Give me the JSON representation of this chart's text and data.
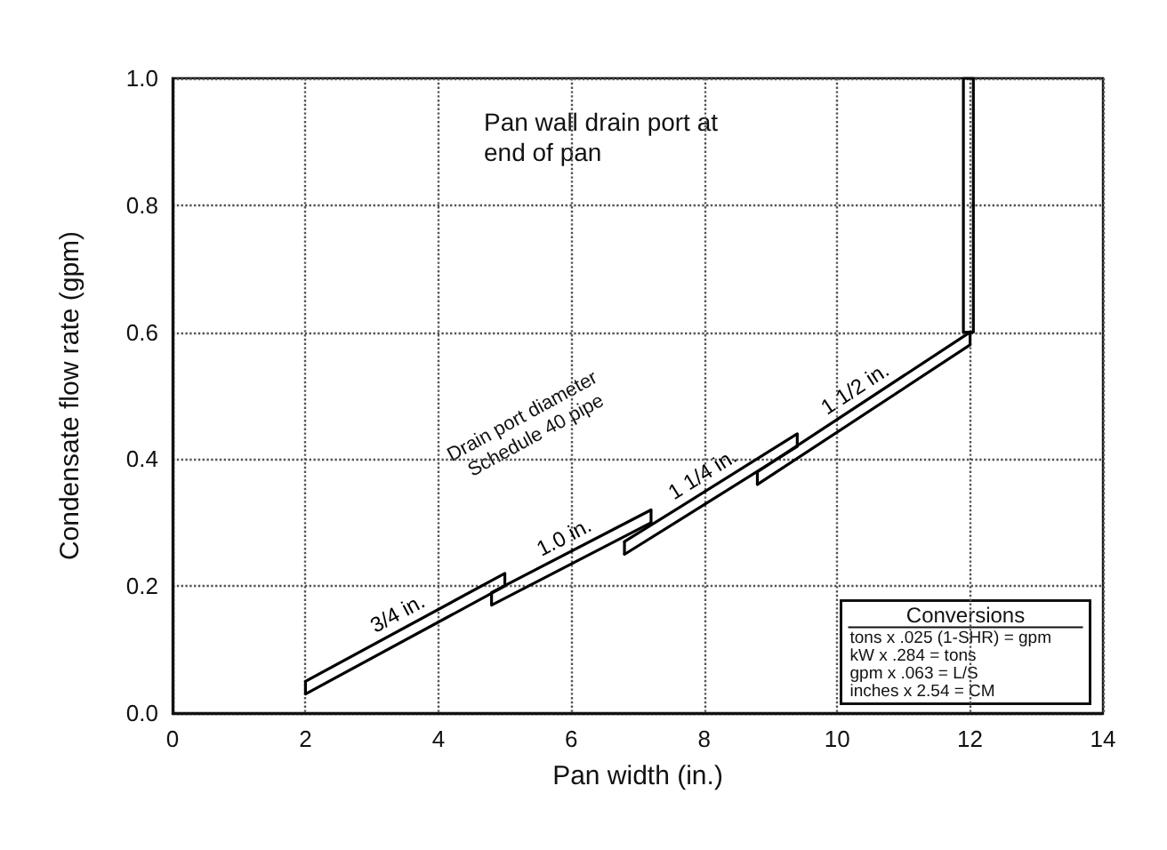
{
  "chart_data": {
    "type": "line",
    "title": "Pan wall drain port at end of pan",
    "xlabel": "Pan width (in.)",
    "ylabel": "Condensate flow rate (gpm)",
    "annotations": [
      "Drain port diameter Schedule 40 pipe",
      "Conversions",
      "tons x .025 (1-SHR) = gpm",
      "kW x .284 = tons",
      "gpm x .063 = L/S",
      "inches x 2.54 = CM"
    ],
    "series": [
      {
        "name": "3/4 in.",
        "color": "#000000",
        "x": [
          2,
          5
        ],
        "values": [
          0.05,
          0.22
        ],
        "errors": [
          [
            0.03,
            0.05
          ],
          [
            0.2,
            0.22
          ]
        ]
      },
      {
        "color": "#000000",
        "x": [
          2,
          5
        ],
        "values": [
          0.03,
          0.2
        ]
      },
      {
        "name": "1.0 in.",
        "color": "#000000",
        "x": [
          4.8,
          7.2
        ],
        "values": [
          0.19,
          0.32
        ],
        "errors": [
          [
            0.17,
            0.19
          ],
          [
            0.3,
            0.32
          ]
        ]
      },
      {
        "color": "#000000",
        "x": [
          4.8,
          7.2
        ],
        "values": [
          0.17,
          0.3
        ]
      },
      {
        "name": "1 1/4 in.",
        "color": "#000000",
        "x": [
          6.8,
          9.4
        ],
        "values": [
          0.27,
          0.44
        ],
        "errors": [
          [
            0.25,
            0.27
          ],
          [
            0.42,
            0.44
          ]
        ]
      },
      {
        "color": "#000000",
        "x": [
          6.8,
          9.4
        ],
        "values": [
          0.25,
          0.42
        ]
      },
      {
        "name": "1 1/2 in.",
        "color": "#000000",
        "x": [
          8.8,
          12
        ],
        "values": [
          0.38,
          0.6
        ],
        "errors": [
          [
            0.36,
            0.38
          ],
          [
            0.58,
            0.6
          ]
        ]
      },
      {
        "color": "#000000",
        "x": [
          8.8,
          12
        ],
        "values": [
          0.36,
          0.58
        ]
      },
      {
        "color": "#000000",
        "x": [
          11.9,
          12.05
        ],
        "values": [
          1.0,
          1.0
        ],
        "errors": [
          [
            0.6,
            1.0
          ],
          [
            0.6,
            1.0
          ]
        ]
      },
      {
        "color": "#000000",
        "x": [
          11.9,
          12.05
        ],
        "values": [
          0.6,
          0.6
        ]
      }
    ],
    "xlim": [
      0,
      14
    ],
    "xticks": [
      0,
      2,
      4,
      6,
      8,
      10,
      12,
      14
    ],
    "ylim": [
      0,
      1
    ],
    "yticks": [
      {
        "value": 0,
        "label": "0.0"
      },
      {
        "value": 0.2,
        "label": "0.2"
      },
      {
        "value": 0.4,
        "label": "0.4"
      },
      {
        "value": 0.6,
        "label": "0.6"
      },
      {
        "value": 0.8,
        "label": "0.8"
      },
      {
        "value": 1,
        "label": "1.0"
      }
    ],
    "grid": true,
    "legend": false
  }
}
